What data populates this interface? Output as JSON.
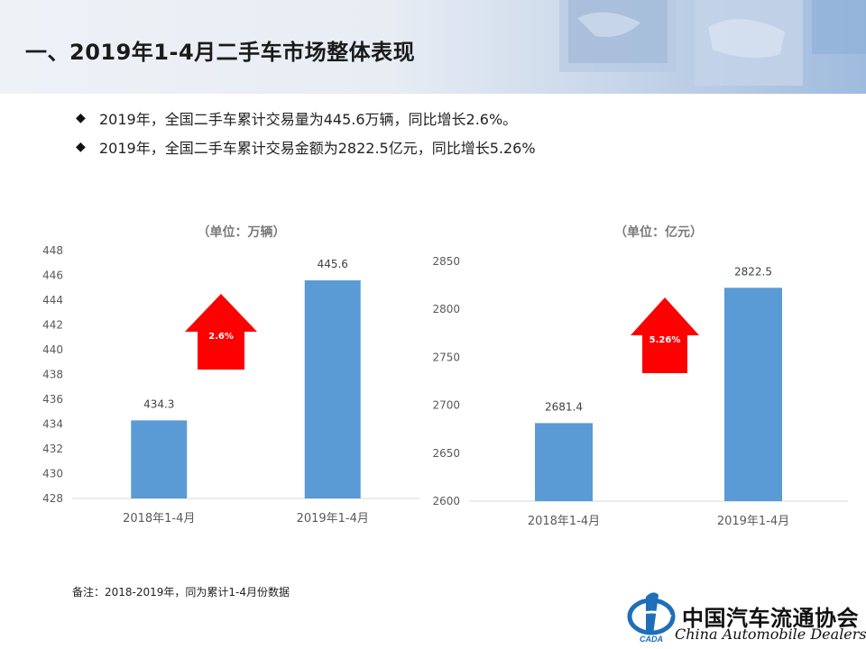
{
  "header": {
    "title": "一、2019年1-4月二手车市场整体表现"
  },
  "bullets": [
    {
      "marker": "◆",
      "text": "2019年，全国二手车累计交易量为445.6万辆，同比增长2.6%。"
    },
    {
      "marker": "◆",
      "text": "2019年，全国二手车累计交易金额为2822.5亿元，同比增长5.26%"
    }
  ],
  "colors": {
    "bar": "#5b9bd5",
    "arrow": "#ff0000",
    "axis": "#d9d9d9"
  },
  "chart_data": [
    {
      "type": "bar",
      "title": "（单位：万辆）",
      "categories": [
        "2018年1-4月",
        "2019年1-4月"
      ],
      "values": [
        434.3,
        445.6
      ],
      "value_labels": [
        "434.3",
        "445.6"
      ],
      "ylim": [
        428,
        448
      ],
      "yticks": [
        "428",
        "430",
        "432",
        "434",
        "436",
        "438",
        "440",
        "442",
        "444",
        "446",
        "448"
      ],
      "grid": false,
      "annotation": {
        "shape": "up-arrow",
        "text": "2.6%"
      }
    },
    {
      "type": "bar",
      "title": "（单位：亿元）",
      "categories": [
        "2018年1-4月",
        "2019年1-4月"
      ],
      "values": [
        2681.4,
        2822.5
      ],
      "value_labels": [
        "2681.4",
        "2822.5"
      ],
      "ylim": [
        2600,
        2850
      ],
      "yticks": [
        "2600",
        "2650",
        "2700",
        "2750",
        "2800",
        "2850"
      ],
      "grid": false,
      "annotation": {
        "shape": "up-arrow",
        "text": "5.26%"
      }
    }
  ],
  "footnote": "备注：2018-2019年，同为累计1-4月份数据",
  "logo": {
    "cn": "中国汽车流通协会",
    "en": "China Automobile Dealers",
    "emblem_text": "CADA"
  }
}
